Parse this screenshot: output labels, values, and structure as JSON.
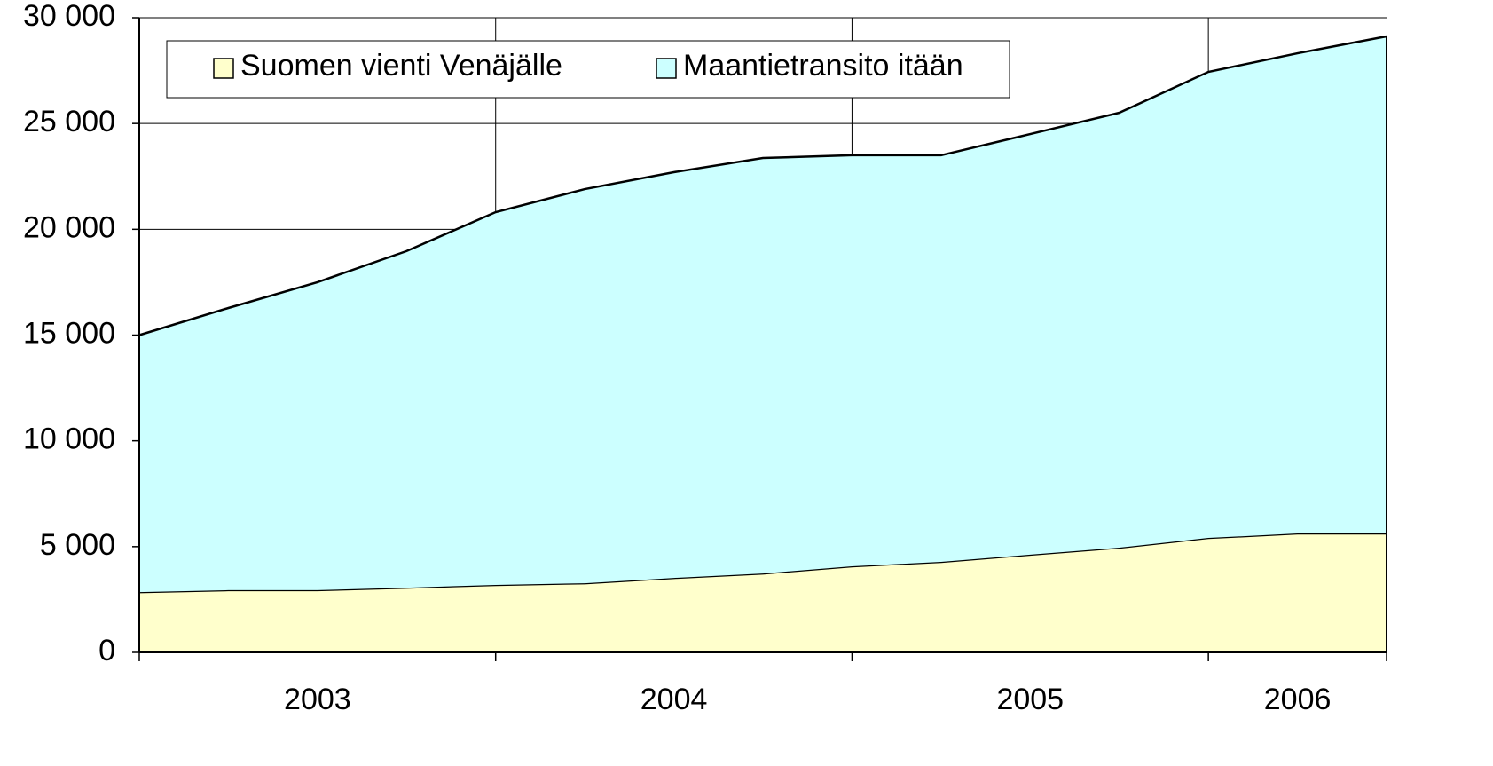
{
  "chart_data": {
    "type": "stacked_area",
    "categories": [
      null,
      null,
      null,
      null,
      null,
      null,
      null,
      null,
      null,
      null,
      null,
      null,
      null,
      null,
      null
    ],
    "group_labels": [
      "2003",
      "2004",
      "2005",
      "2006"
    ],
    "group_sizes": [
      4,
      4,
      4,
      3
    ],
    "series": [
      {
        "name": "Suomen vienti Venäjälle",
        "color": "#ffffcc",
        "values": [
          2850,
          2940,
          2940,
          3060,
          3190,
          3270,
          3520,
          3730,
          4070,
          4280,
          4620,
          4950,
          5410,
          5620,
          5620
        ]
      },
      {
        "name": "Maantietransito itään",
        "color": "#ccffff",
        "values": [
          12150,
          13340,
          14560,
          15910,
          17620,
          18630,
          19180,
          19640,
          19430,
          19220,
          19880,
          20560,
          22030,
          22700,
          23500
        ]
      }
    ],
    "ylim": [
      0,
      30000
    ],
    "yticks": [
      0,
      {
        "value": 5000,
        "label": "5 000"
      },
      {
        "value": 10000,
        "label": "10 000"
      },
      {
        "value": 15000,
        "label": "15 000"
      },
      {
        "value": 20000,
        "label": "20 000"
      },
      {
        "value": 25000,
        "label": "25 000"
      },
      {
        "value": 30000,
        "label": "30 000"
      }
    ],
    "grid": true,
    "legend": "top"
  }
}
